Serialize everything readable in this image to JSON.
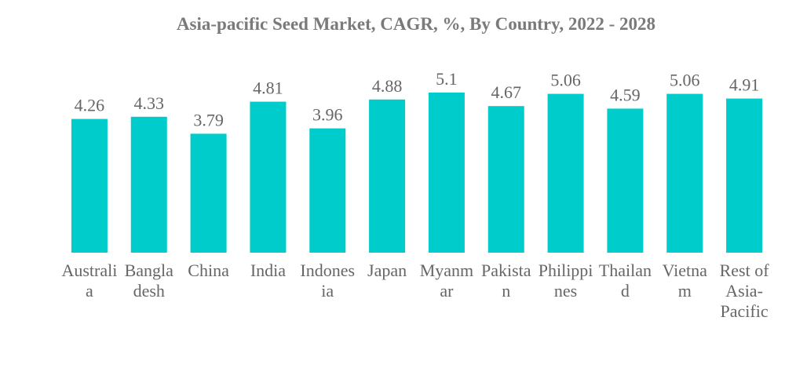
{
  "chart_data": {
    "type": "bar",
    "title": "Asia-pacific Seed Market, CAGR, %, By Country, 2022 - 2028",
    "categories": [
      "Australia",
      "Bangladesh",
      "China",
      "India",
      "Indonesia",
      "Japan",
      "Myanmar",
      "Pakistan",
      "Philippines",
      "Thailand",
      "Vietnam",
      "Rest of Asia-Pacific"
    ],
    "values": [
      4.26,
      4.33,
      3.79,
      4.81,
      3.96,
      4.88,
      5.1,
      4.67,
      5.06,
      4.59,
      5.06,
      4.91
    ],
    "color": "#00cccc"
  }
}
